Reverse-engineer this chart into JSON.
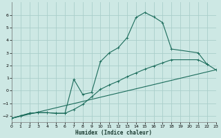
{
  "xlabel": "Humidex (Indice chaleur)",
  "xlim": [
    0,
    23
  ],
  "ylim": [
    -2.5,
    7
  ],
  "yticks": [
    -2,
    -1,
    0,
    1,
    2,
    3,
    4,
    5,
    6
  ],
  "xticks": [
    0,
    1,
    2,
    3,
    4,
    5,
    6,
    7,
    8,
    9,
    10,
    11,
    12,
    13,
    14,
    15,
    16,
    17,
    18,
    19,
    20,
    21,
    22,
    23
  ],
  "bg_color": "#cde8e4",
  "grid_color": "#aaceca",
  "line_color": "#1a6b5a",
  "line1_x": [
    0,
    1,
    2,
    3,
    4,
    5,
    6,
    7,
    8,
    9,
    10,
    11,
    12,
    13,
    14,
    15,
    16,
    17,
    18,
    21,
    22
  ],
  "line1_y": [
    -2.2,
    -2.0,
    -1.8,
    -1.75,
    -1.75,
    -1.8,
    -1.8,
    0.9,
    -0.3,
    -0.15,
    2.3,
    3.0,
    3.4,
    4.2,
    5.8,
    6.2,
    5.85,
    5.4,
    3.3,
    3.0,
    2.1
  ],
  "line2_x": [
    0,
    1,
    2,
    3,
    4,
    5,
    6,
    7,
    8,
    9,
    10,
    11,
    12,
    13,
    14,
    15,
    16,
    17,
    18,
    21,
    22,
    23
  ],
  "line2_y": [
    -2.2,
    -2.0,
    -1.8,
    -1.75,
    -1.75,
    -1.8,
    -1.8,
    -1.5,
    -1.1,
    -0.5,
    0.1,
    0.45,
    0.75,
    1.1,
    1.4,
    1.7,
    1.95,
    2.2,
    2.45,
    2.45,
    2.1,
    1.65
  ],
  "line3_x": [
    0,
    23
  ],
  "line3_y": [
    -2.2,
    1.65
  ]
}
